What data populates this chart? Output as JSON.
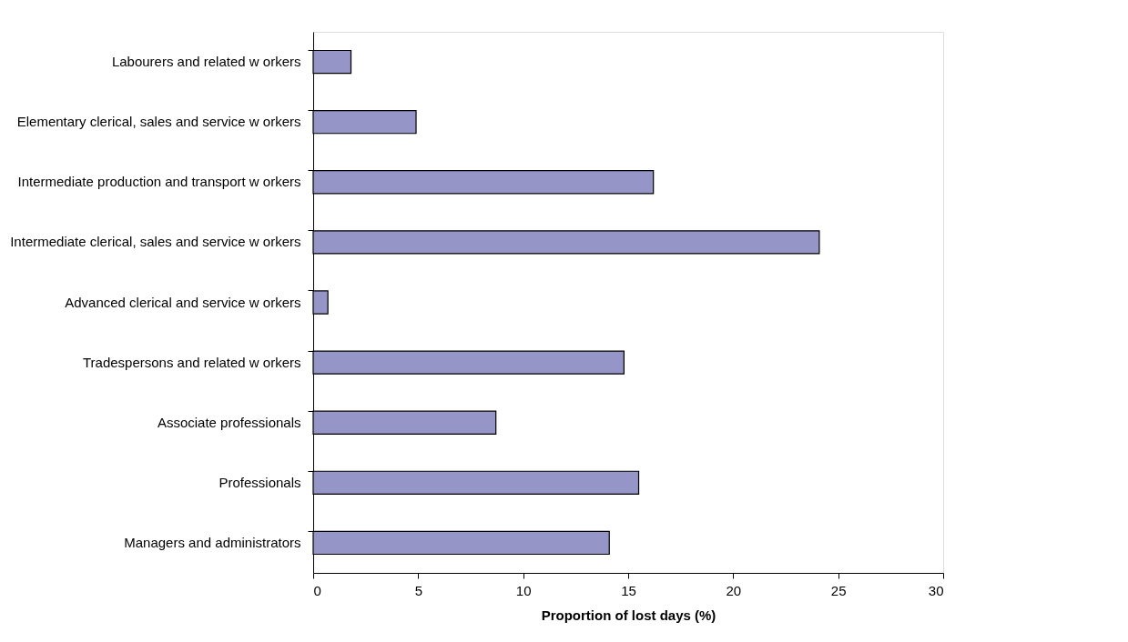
{
  "chart_data": {
    "type": "bar",
    "orientation": "horizontal",
    "xlabel": "Proportion of lost days (%)",
    "categories": [
      "Labourers and related w orkers",
      "Elementary clerical, sales and service w orkers",
      "Intermediate production and transport w orkers",
      "Intermediate clerical, sales and service w orkers",
      "Advanced clerical and service w orkers",
      "Tradespersons and related w orkers",
      "Associate professionals",
      "Professionals",
      "Managers and administrators"
    ],
    "values": [
      1.8,
      4.9,
      16.2,
      24.1,
      0.7,
      14.8,
      8.7,
      15.5,
      14.1
    ],
    "color": "#9595c8",
    "xlim": [
      0,
      30
    ],
    "xticks": [
      0,
      5,
      10,
      15,
      20,
      25,
      30
    ],
    "grid": false
  }
}
